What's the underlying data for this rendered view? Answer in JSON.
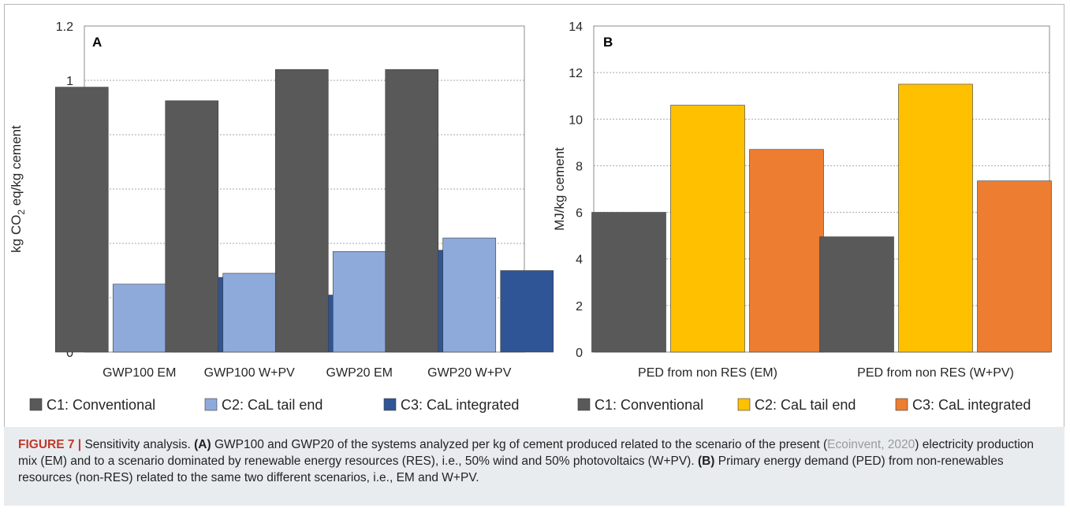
{
  "colors": {
    "c1": "#595959",
    "c2_a": "#8eaadb",
    "c3_a": "#2f5597",
    "c2_b": "#ffc000",
    "c3_b": "#ed7d31",
    "grid": "#a6a6a6",
    "caption_label": "#c0392b"
  },
  "chart_data": [
    {
      "panel": "A",
      "type": "bar",
      "ylabel_parts": [
        "kg CO",
        "2",
        " eq/kg cement"
      ],
      "ylim": [
        0,
        1.2
      ],
      "yticks": [
        "0",
        "0.2",
        "0.4",
        "0.6",
        "0.8",
        "1",
        "1.2"
      ],
      "ytick_values": [
        0,
        0.2,
        0.4,
        0.6,
        0.8,
        1.0,
        1.2
      ],
      "categories": [
        "GWP100 EM",
        "GWP100 W+PV",
        "GWP20 EM",
        "GWP20 W+PV"
      ],
      "series": [
        {
          "name": "C1: Conventional",
          "color": "#595959",
          "values": [
            0.975,
            0.925,
            1.04,
            1.04
          ]
        },
        {
          "name": "C2: CaL tail end",
          "color": "#8eaadb",
          "values": [
            0.25,
            0.29,
            0.37,
            0.42
          ]
        },
        {
          "name": "C3: CaL integrated",
          "color": "#2f5597",
          "values": [
            0.275,
            0.21,
            0.375,
            0.3
          ]
        }
      ],
      "grid": true,
      "legend": "bottom"
    },
    {
      "panel": "B",
      "type": "bar",
      "ylabel": "MJ/kg cement",
      "ylim": [
        0,
        14
      ],
      "yticks": [
        "0",
        "2",
        "4",
        "6",
        "8",
        "10",
        "12",
        "14"
      ],
      "ytick_values": [
        0,
        2,
        4,
        6,
        8,
        10,
        12,
        14
      ],
      "categories": [
        "PED from non RES (EM)",
        "PED from non RES (W+PV)"
      ],
      "series": [
        {
          "name": "C1: Conventional",
          "color": "#595959",
          "values": [
            6.0,
            4.95
          ]
        },
        {
          "name": "C2: CaL tail end",
          "color": "#ffc000",
          "values": [
            10.6,
            11.5
          ]
        },
        {
          "name": "C3: CaL integrated",
          "color": "#ed7d31",
          "values": [
            8.7,
            7.35
          ]
        }
      ],
      "grid": true,
      "legend": "bottom"
    }
  ],
  "caption": {
    "label": "FIGURE 7 |",
    "intro": " Sensitivity analysis. ",
    "a_tag": "(A)",
    "a_text_1": " GWP100 and GWP20 of the systems analyzed per kg of cement produced related to the scenario of the present (",
    "ref": "Ecoinvent, 2020",
    "a_text_2": ") electricity production mix (EM) and to a scenario dominated by renewable energy resources (RES), i.e., 50% wind and 50% photovoltaics (W+PV). ",
    "b_tag": "(B)",
    "b_text": " Primary energy demand (PED) from non-renewables resources (non-RES) related to the same two different scenarios, i.e., EM and W+PV."
  }
}
